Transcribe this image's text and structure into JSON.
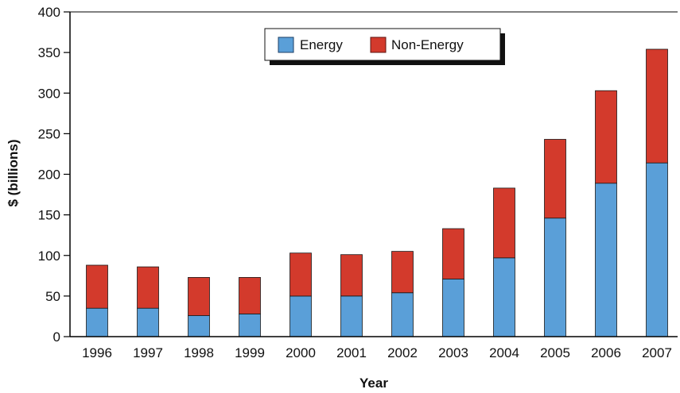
{
  "chart_data": {
    "type": "bar",
    "stacked": true,
    "categories": [
      "1996",
      "1997",
      "1998",
      "1999",
      "2000",
      "2001",
      "2002",
      "2003",
      "2004",
      "2005",
      "2006",
      "2007"
    ],
    "series": [
      {
        "name": "Energy",
        "color": "#5a9fd8",
        "values": [
          35,
          35,
          26,
          28,
          50,
          50,
          54,
          71,
          97,
          146,
          189,
          214
        ]
      },
      {
        "name": "Non-Energy",
        "color": "#d33a2c",
        "values": [
          53,
          51,
          47,
          45,
          53,
          51,
          51,
          62,
          86,
          97,
          114,
          140
        ]
      }
    ],
    "xlabel": "Year",
    "ylabel": "$ (billions)",
    "ylim": [
      0,
      400
    ],
    "yticks": [
      0,
      50,
      100,
      150,
      200,
      250,
      300,
      350,
      400
    ],
    "grid": false,
    "legend": "top-center"
  }
}
